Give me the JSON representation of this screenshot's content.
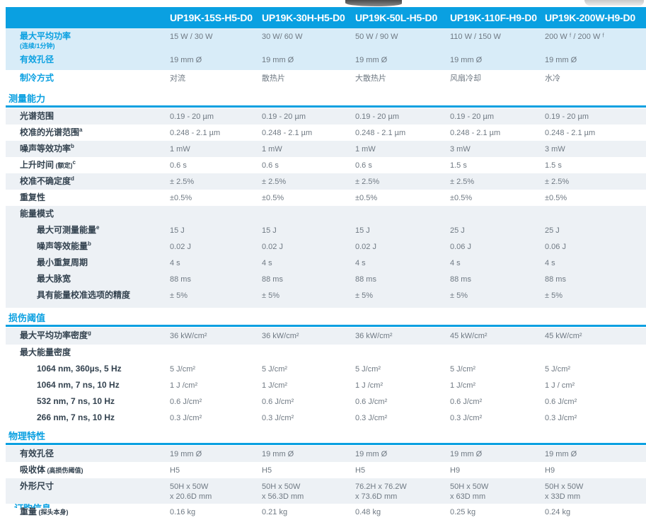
{
  "table": {
    "columns": [
      "UP19K-15S-H5-D0",
      "UP19K-30H-H5-D0",
      "UP19K-50L-H5-D0",
      "UP19K-110F-H9-D0",
      "UP19K-200W-H9-D0"
    ],
    "blocks": [
      {
        "rows": [
          {
            "label": "最大平均功率",
            "note2": "(连续/1分钟)",
            "blue": true,
            "bg": "blue",
            "h": 33,
            "values": [
              "15 W / 30 W",
              "30 W/ 60 W",
              "50 W / 90 W",
              "110 W / 150 W",
              "200 W ᶠ / 200 W ᶠ"
            ]
          },
          {
            "label": "有效孔径",
            "blue": true,
            "bg": "blue",
            "h": 26,
            "values": [
              "19 mm Ø",
              "19 mm Ø",
              "19 mm Ø",
              "19 mm Ø",
              "19 mm Ø"
            ]
          },
          {
            "label": "制冷方式",
            "blue": true,
            "bg": "white",
            "h": 26,
            "values": [
              "对流",
              "散热片",
              "大散热片",
              "风扇冷却",
              "水冷"
            ]
          }
        ]
      },
      {
        "section": "测量能力",
        "rows": [
          {
            "label": "光谱范围",
            "bg": "stripe",
            "values": [
              "0.19 - 20 µm",
              "0.19 - 20 µm",
              "0.19 - 20 µm",
              "0.19 - 20 µm",
              "0.19 - 20 µm"
            ]
          },
          {
            "label": "校准的光谱范围",
            "sup": "a",
            "bg": "white",
            "values": [
              "0.248 - 2.1 µm",
              "0.248 - 2.1 µm",
              "0.248 - 2.1 µm",
              "0.248 - 2.1 µm",
              "0.248 - 2.1 µm"
            ]
          },
          {
            "label": "噪声等效功率",
            "sup": "b",
            "bg": "stripe",
            "values": [
              "1 mW",
              "1 mW",
              "1 mW",
              "3 mW",
              "3 mW"
            ]
          },
          {
            "label": "上升时间",
            "note": "(额定)",
            "sup": "c",
            "bg": "white",
            "values": [
              "0.6 s",
              "0.6 s",
              "0.6 s",
              "1.5 s",
              "1.5 s"
            ]
          },
          {
            "label": "校准不确定度",
            "sup": "d",
            "bg": "stripe",
            "values": [
              "± 2.5%",
              "± 2.5%",
              "± 2.5%",
              "± 2.5%",
              "± 2.5%"
            ]
          },
          {
            "label": "重复性",
            "bg": "white",
            "values": [
              "±0.5%",
              "±0.5%",
              "±0.5%",
              "±0.5%",
              "±0.5%"
            ]
          },
          {
            "label": "能量模式",
            "kind": "subheader",
            "bg": "stripe",
            "values": []
          },
          {
            "label": "最大可测量能量",
            "sup": "e",
            "indent": 2,
            "bg": "stripe",
            "values": [
              "15 J",
              "15 J",
              "15 J",
              "25 J",
              "25 J"
            ]
          },
          {
            "label": "噪声等效能量",
            "sup": "b",
            "indent": 2,
            "bg": "stripe",
            "values": [
              "0.02 J",
              "0.02 J",
              "0.02 J",
              "0.06 J",
              "0.06 J"
            ]
          },
          {
            "label": "最小重复周期",
            "indent": 2,
            "bg": "stripe",
            "values": [
              "4 s",
              "4 s",
              "4 s",
              "4 s",
              "4 s"
            ]
          },
          {
            "label": "最大脉宽",
            "indent": 2,
            "bg": "stripe",
            "values": [
              "88 ms",
              "88 ms",
              "88 ms",
              "88 ms",
              "88 ms"
            ]
          },
          {
            "label": "具有能量校准选项的精度",
            "indent": 2,
            "bg": "stripe",
            "h": 29,
            "values": [
              "± 5%",
              "± 5%",
              "± 5%",
              "± 5%",
              "± 5%"
            ]
          }
        ]
      },
      {
        "section": "损伤阈值",
        "rows": [
          {
            "label": "最大平均功率密度",
            "sup": "g",
            "bg": "stripe",
            "h": 24,
            "values": [
              "36 kW/cm²",
              "36 kW/cm²",
              "36 kW/cm²",
              "45 kW/cm²",
              "45 kW/cm²"
            ]
          },
          {
            "label": "最大能量密度",
            "kind": "subheader",
            "bg": "white",
            "values": []
          },
          {
            "label": "1064 nm, 360µs, 5 Hz",
            "indent": 2,
            "bg": "white",
            "values": [
              "5 J/cm²",
              "5 J/cm²",
              "5 J/cm²",
              "5 J/cm²",
              "5 J/cm²"
            ]
          },
          {
            "label": "1064 nm, 7 ns, 10 Hz",
            "indent": 2,
            "bg": "white",
            "values": [
              "1 J /cm²",
              "1 J/cm²",
              "1 J /cm²",
              "1 J/cm²",
              "1 J / cm²"
            ]
          },
          {
            "label": "532 nm, 7 ns, 10 Hz",
            "indent": 2,
            "bg": "white",
            "values": [
              "0.6 J/cm²",
              "0.6 J/cm²",
              "0.6 J/cm²",
              "0.6 J/cm²",
              "0.6 J/cm²"
            ]
          },
          {
            "label": "266 nm, 7 ns, 10 Hz",
            "indent": 2,
            "bg": "white",
            "values": [
              "0.3 J/cm²",
              "0.3 J/cm²",
              "0.3 J/cm²",
              "0.3 J/cm²",
              "0.3 J/cm²"
            ]
          }
        ]
      },
      {
        "section": "物理特性",
        "rows": [
          {
            "label": "有效孔径",
            "bg": "stripe",
            "values": [
              "19 mm Ø",
              "19 mm Ø",
              "19 mm Ø",
              "19 mm Ø",
              "19 mm Ø"
            ]
          },
          {
            "label": "吸收体",
            "note": "(高损伤阈值)",
            "bg": "white",
            "values": [
              "H5",
              "H5",
              "H5",
              "H9",
              "H9"
            ]
          },
          {
            "label": "外形尺寸",
            "bg": "stripe",
            "h": 36,
            "values": [
              "50H x 50W\nx 20.6D mm",
              "50H x 50W\nx 56.3D mm",
              "76.2H x 76.2W\nx 73.6D mm",
              "50H x 50W\nx 63D mm",
              "50H x 50W\nx 33D mm"
            ]
          },
          {
            "label": "重量",
            "note": "(探头本身)",
            "bg": "white",
            "values": [
              "0.16 kg",
              "0.21 kg",
              "0.48 kg",
              "0.25 kg",
              "0.24 kg"
            ]
          }
        ]
      }
    ],
    "truncated_section": "订购信息"
  }
}
